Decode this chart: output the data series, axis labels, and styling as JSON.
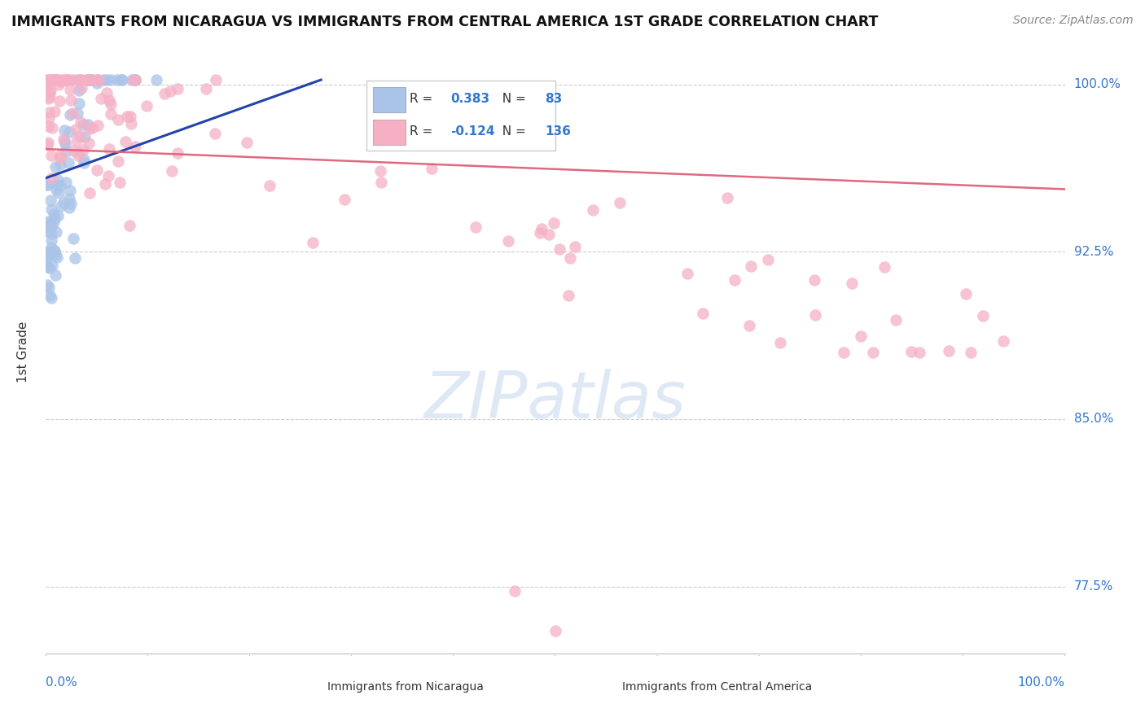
{
  "title": "IMMIGRANTS FROM NICARAGUA VS IMMIGRANTS FROM CENTRAL AMERICA 1ST GRADE CORRELATION CHART",
  "source": "Source: ZipAtlas.com",
  "ylabel": "1st Grade",
  "legend_blue_R": "0.383",
  "legend_blue_N": "83",
  "legend_pink_R": "-0.124",
  "legend_pink_N": "136",
  "blue_color": "#aac4e8",
  "pink_color": "#f5b0c5",
  "blue_line_color": "#2244aa",
  "pink_line_color": "#e06880",
  "xlim": [
    0.0,
    1.0
  ],
  "ylim": [
    0.745,
    1.015
  ],
  "ytick_positions": [
    1.0,
    0.925,
    0.85,
    0.775
  ],
  "ytick_labels": [
    "100.0%",
    "92.5%",
    "85.0%",
    "77.5%"
  ]
}
